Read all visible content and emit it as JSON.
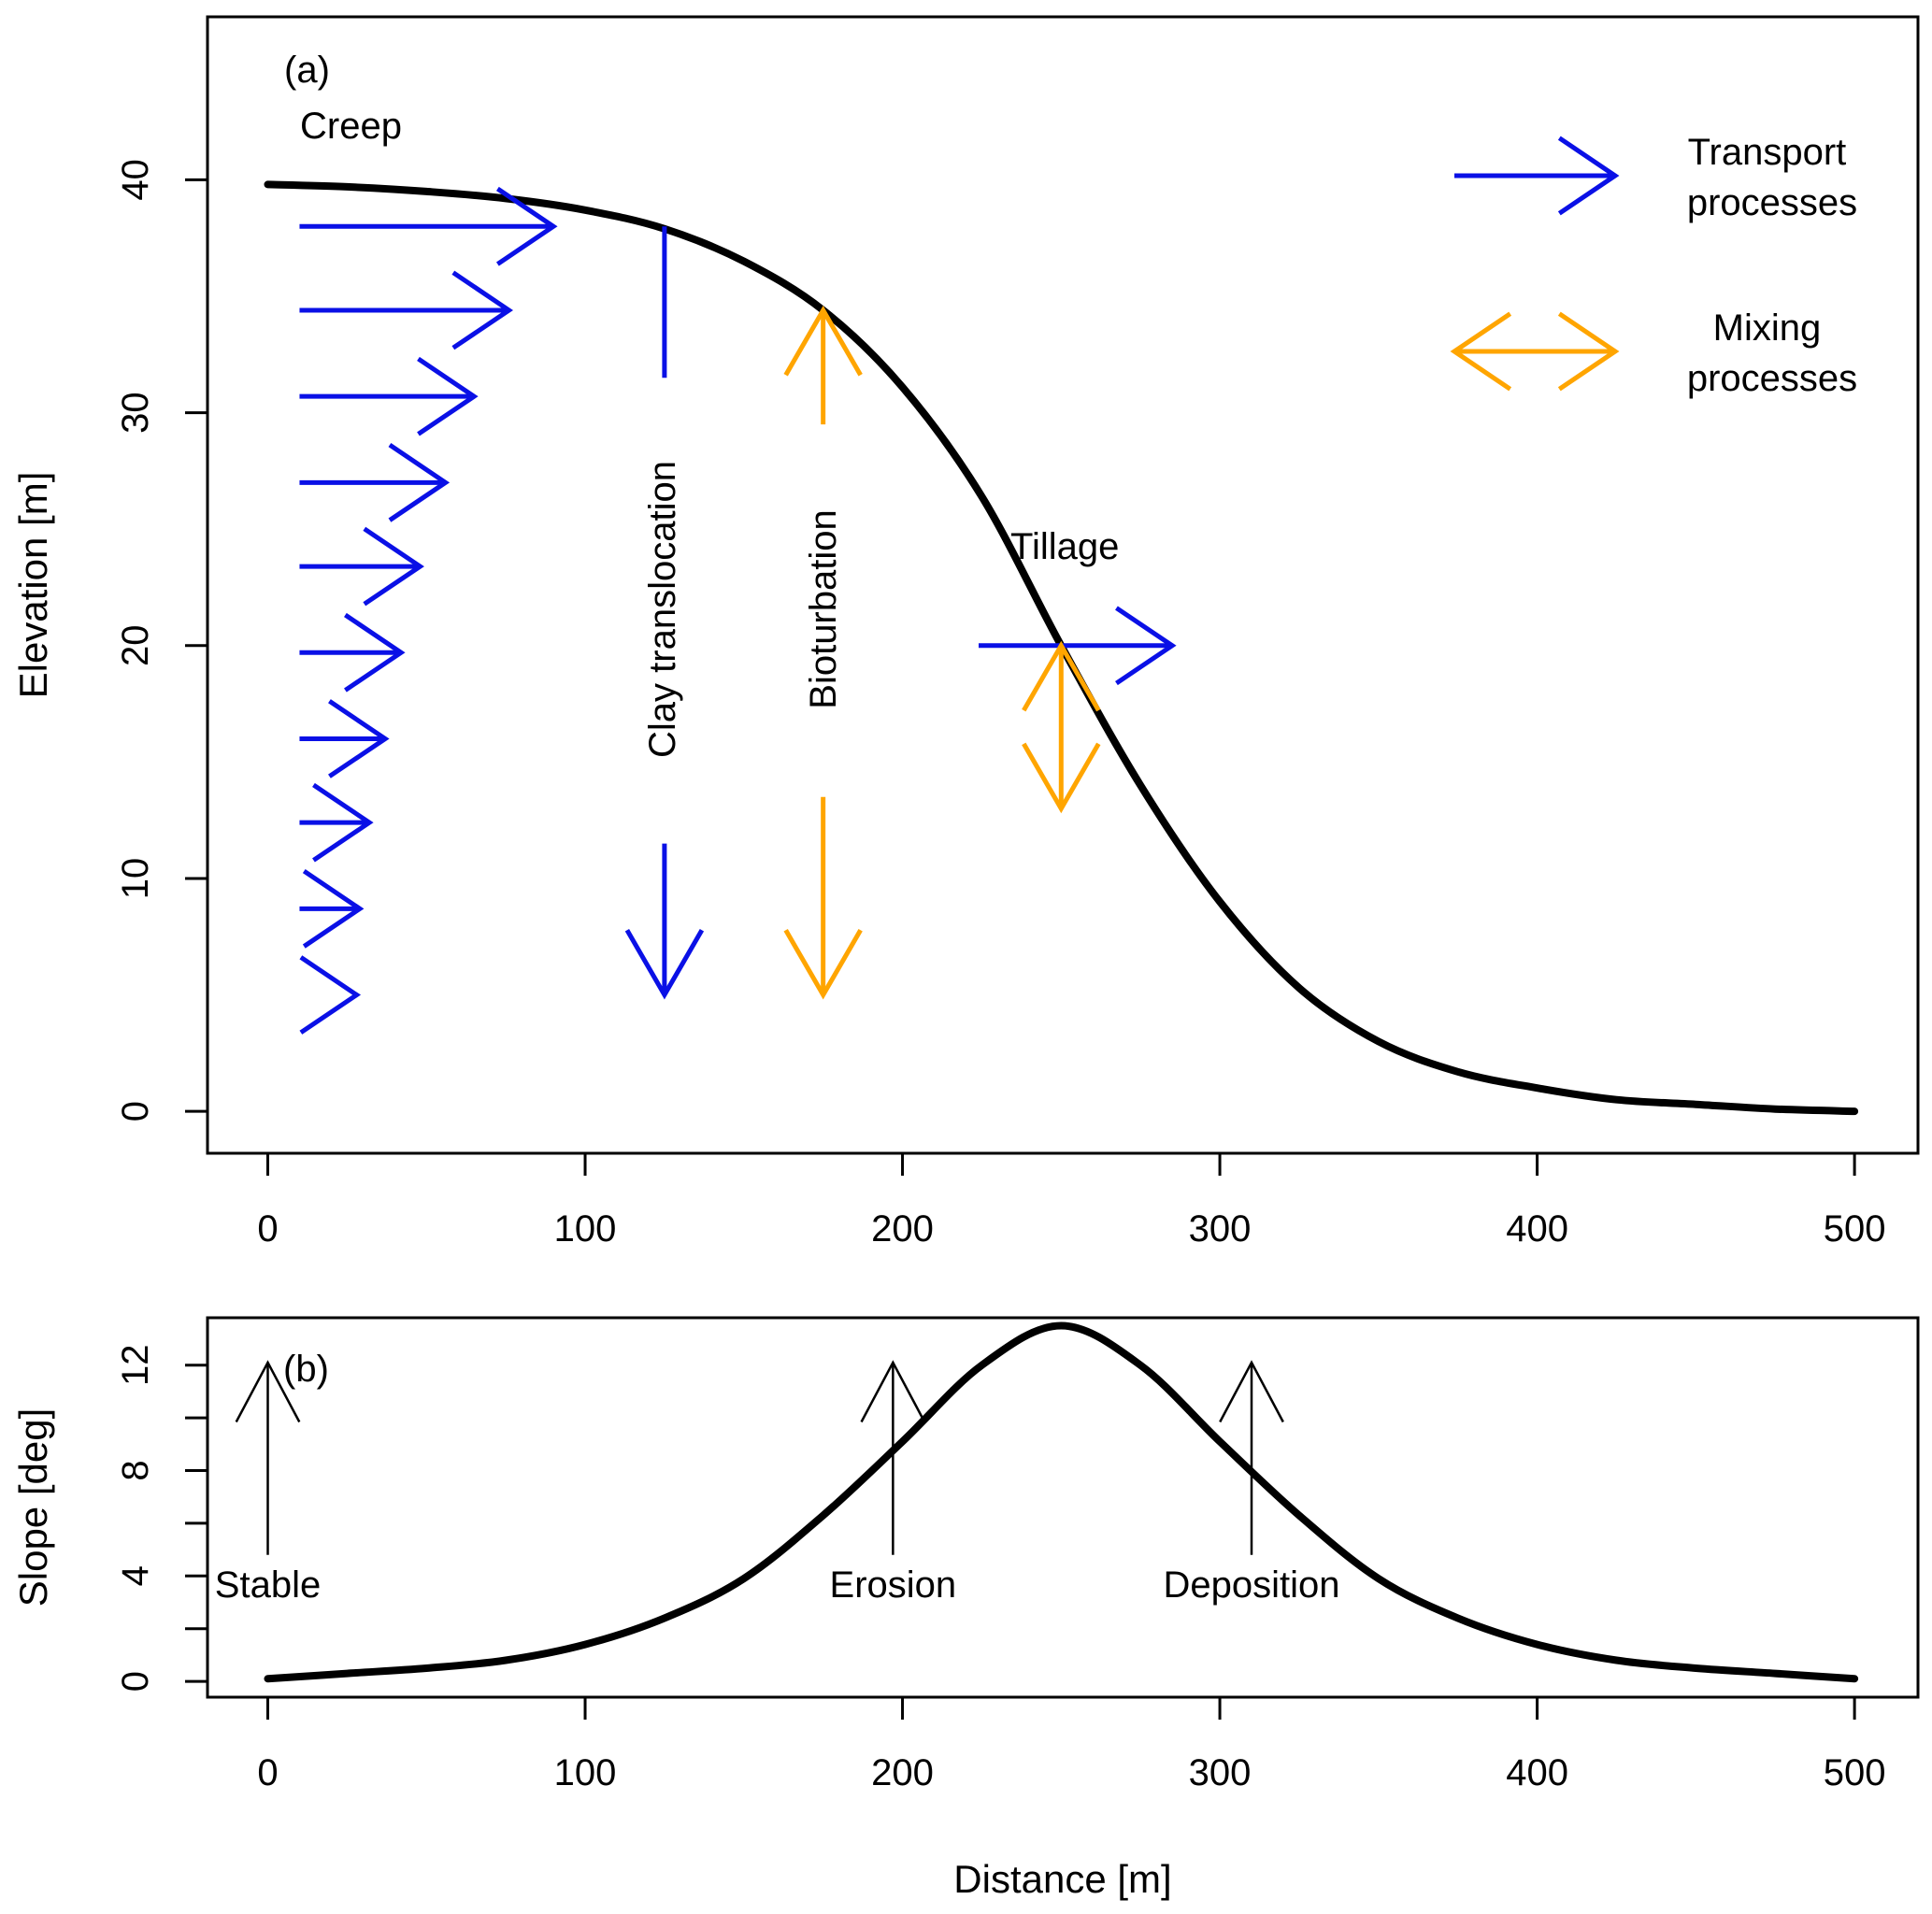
{
  "colors": {
    "transport": "#0a10e6",
    "mixing": "#ffa500",
    "curve": "#000000",
    "axis": "#000000"
  },
  "chart_data": [
    {
      "panel_label": "(a)",
      "type": "line",
      "title": "",
      "xlabel": "",
      "ylabel": "Elevation [m]",
      "xlim": [
        -19,
        520
      ],
      "ylim": [
        -1.8,
        47
      ],
      "x_ticks": [
        0,
        100,
        200,
        300,
        400,
        500
      ],
      "y_ticks": [
        0,
        10,
        20,
        30,
        40
      ],
      "series": [
        {
          "name": "Hillslope profile",
          "x": [
            0,
            25,
            50,
            75,
            100,
            125,
            150,
            175,
            200,
            225,
            250,
            275,
            300,
            325,
            350,
            375,
            400,
            425,
            450,
            475,
            500
          ],
          "y": [
            39.8,
            39.7,
            39.5,
            39.2,
            38.7,
            37.9,
            36.5,
            34.4,
            31.1,
            26.4,
            20.0,
            14.0,
            9.0,
            5.3,
            3.0,
            1.7,
            1.0,
            0.5,
            0.3,
            0.1,
            0.0
          ]
        }
      ],
      "annotations": {
        "creep": "Creep",
        "clay_translocation": "Clay translocation",
        "bioturbation": "Bioturbation",
        "tillage": "Tillage"
      },
      "creep_arrows": [
        {
          "y": 38.0,
          "length": 80
        },
        {
          "y": 34.4,
          "length": 66
        },
        {
          "y": 30.7,
          "length": 55
        },
        {
          "y": 27.0,
          "length": 46
        },
        {
          "y": 23.4,
          "length": 38
        },
        {
          "y": 19.7,
          "length": 32
        },
        {
          "y": 16.0,
          "length": 27
        },
        {
          "y": 12.4,
          "length": 22
        },
        {
          "y": 8.7,
          "length": 19
        },
        {
          "y": 5.0,
          "length": 18
        }
      ],
      "legend": [
        {
          "label": "Transport\nprocesses",
          "style": "arrow",
          "color_key": "transport"
        },
        {
          "label": "Mixing\nprocesses",
          "style": "double-arrow",
          "color_key": "mixing"
        }
      ],
      "legend_position": "top-right"
    },
    {
      "panel_label": "(b)",
      "type": "line",
      "title": "",
      "xlabel": "Distance [m]",
      "ylabel": "Slope [deg]",
      "xlim": [
        -19,
        520
      ],
      "ylim": [
        -0.6,
        13.8
      ],
      "x_ticks": [
        0,
        100,
        200,
        300,
        400,
        500
      ],
      "y_ticks": [
        0,
        4,
        8,
        12
      ],
      "y_minor_ticks": [
        2,
        6,
        10
      ],
      "series": [
        {
          "name": "Slope",
          "x": [
            0,
            25,
            50,
            75,
            100,
            125,
            150,
            175,
            200,
            225,
            250,
            275,
            300,
            325,
            350,
            375,
            400,
            425,
            450,
            475,
            500
          ],
          "y": [
            0.1,
            0.3,
            0.5,
            0.8,
            1.4,
            2.4,
            3.9,
            6.3,
            9.1,
            12.0,
            13.5,
            12.0,
            9.1,
            6.3,
            3.9,
            2.4,
            1.4,
            0.8,
            0.5,
            0.3,
            0.1
          ]
        }
      ],
      "markers": [
        {
          "label": "Stable",
          "x": 0
        },
        {
          "label": "Erosion",
          "x": 197
        },
        {
          "label": "Deposition",
          "x": 310
        }
      ]
    }
  ]
}
